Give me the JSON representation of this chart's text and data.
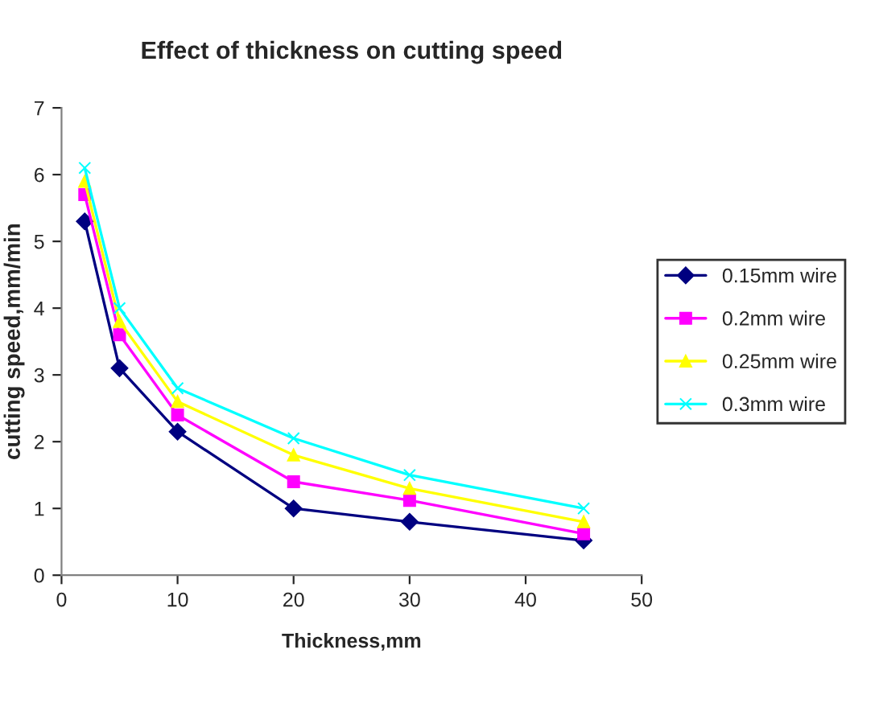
{
  "chart_data": {
    "type": "line",
    "title": "Effect of thickness on cutting speed",
    "xlabel": "Thickness,mm",
    "ylabel": "cutting speed,mm/min",
    "x": [
      2,
      5,
      10,
      20,
      30,
      45
    ],
    "series": [
      {
        "name": "0.15mm wire",
        "color": "#000080",
        "marker": "diamond",
        "values": [
          5.3,
          3.1,
          2.15,
          1.0,
          0.8,
          0.52
        ]
      },
      {
        "name": "0.2mm wire",
        "color": "#ff00ff",
        "marker": "square",
        "values": [
          5.7,
          3.6,
          2.4,
          1.4,
          1.12,
          0.62
        ]
      },
      {
        "name": "0.25mm wire",
        "color": "#ffff00",
        "marker": "triangle",
        "values": [
          5.9,
          3.8,
          2.6,
          1.8,
          1.3,
          0.8
        ]
      },
      {
        "name": "0.3mm wire",
        "color": "#00ffff",
        "marker": "cross",
        "values": [
          6.1,
          4.0,
          2.8,
          2.05,
          1.5,
          1.0
        ]
      }
    ],
    "xlim": [
      0,
      50
    ],
    "xticks": [
      0,
      10,
      20,
      30,
      40,
      50
    ],
    "ylim": [
      0,
      7
    ],
    "yticks": [
      0,
      1,
      2,
      3,
      4,
      5,
      6,
      7
    ],
    "grid": false,
    "legend": "right",
    "line_style": "solid"
  }
}
